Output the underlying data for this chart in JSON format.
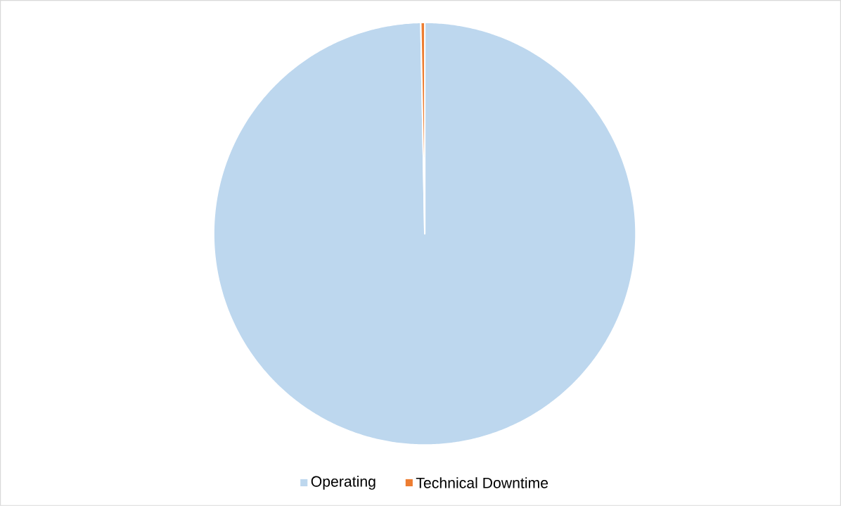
{
  "chart_data": {
    "type": "pie",
    "categories": [
      "Operating",
      "Technical Downtime"
    ],
    "values": [
      99.7,
      0.3
    ],
    "colors": [
      "#bdd7ee",
      "#ed7d31"
    ],
    "legend": "bottom"
  }
}
